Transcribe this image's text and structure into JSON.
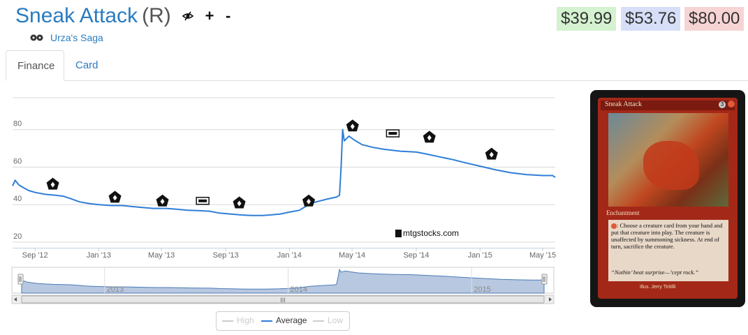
{
  "card": {
    "name": "Sneak Attack",
    "rarity": "(R)",
    "set_name": "Urza's Saga",
    "set_icon": "urzas-saga-set-icon",
    "prices": [
      {
        "label": "$39.99",
        "color": "#d4f2cf"
      },
      {
        "label": "$53.76",
        "color": "#d6dff7"
      },
      {
        "label": "$80.00",
        "color": "#f7d4d4"
      }
    ],
    "plus_label": "+",
    "minus_label": "-"
  },
  "tabs": [
    {
      "label": "Finance",
      "active": true
    },
    {
      "label": "Card",
      "active": false
    }
  ],
  "card_image": {
    "name": "Sneak Attack",
    "mana_cost": "3",
    "type_line": "Enchantment",
    "rules_text": ": Choose a creature card from your hand and put that creature into play. The creature is unaffected by summoning sickness. At end of turn, sacrifice the creature.",
    "flavor_text": "“Nothin’ beat surprise—’cept rock.”",
    "artist": "Illus. Jerry Tiritilli"
  },
  "watermark": "mtgstocks.com",
  "legend": [
    {
      "label": "High",
      "color": "#cccccc"
    },
    {
      "label": "Average",
      "color": "#2f7ed8"
    },
    {
      "label": "Low",
      "color": "#cccccc"
    }
  ],
  "navigator": {
    "year_labels": [
      "2013",
      "2014",
      "2015"
    ],
    "scrollbar_grip": "III"
  },
  "chart_data": {
    "type": "line",
    "title": "",
    "xlabel": "",
    "ylabel": "",
    "ylim": [
      17,
      97
    ],
    "xlim": [
      "2012-07-20",
      "2015-05-25"
    ],
    "y_ticks": [
      20,
      40,
      60,
      80
    ],
    "x_ticks": [
      {
        "label": "Sep '12",
        "date": "2012-09-01"
      },
      {
        "label": "Jan '13",
        "date": "2013-01-01"
      },
      {
        "label": "May '13",
        "date": "2013-05-01"
      },
      {
        "label": "Sep '13",
        "date": "2013-09-01"
      },
      {
        "label": "Jan '14",
        "date": "2014-01-01"
      },
      {
        "label": "May '14",
        "date": "2014-05-01"
      },
      {
        "label": "Sep '14",
        "date": "2014-09-01"
      },
      {
        "label": "Jan '15",
        "date": "2015-01-01"
      },
      {
        "label": "May '15",
        "date": "2015-05-01"
      }
    ],
    "grid": true,
    "legend_position": "bottom",
    "series": [
      {
        "name": "Average",
        "color": "#2f7ed8",
        "points": [
          [
            "2012-07-20",
            50
          ],
          [
            "2012-07-25",
            53
          ],
          [
            "2012-08-01",
            50.5
          ],
          [
            "2012-08-10",
            49
          ],
          [
            "2012-08-20",
            47.5
          ],
          [
            "2012-09-01",
            46.5
          ],
          [
            "2012-09-20",
            45.5
          ],
          [
            "2012-10-10",
            45
          ],
          [
            "2012-10-25",
            44.5
          ],
          [
            "2012-11-10",
            43
          ],
          [
            "2012-11-25",
            41.5
          ],
          [
            "2012-12-15",
            40.5
          ],
          [
            "2013-01-01",
            40
          ],
          [
            "2013-01-25",
            39.5
          ],
          [
            "2013-02-15",
            39.5
          ],
          [
            "2013-03-05",
            39
          ],
          [
            "2013-03-25",
            38.5
          ],
          [
            "2013-04-15",
            38
          ],
          [
            "2013-05-10",
            38
          ],
          [
            "2013-06-01",
            37.5
          ],
          [
            "2013-06-20",
            37
          ],
          [
            "2013-07-10",
            36.8
          ],
          [
            "2013-08-01",
            36.5
          ],
          [
            "2013-08-20",
            35.5
          ],
          [
            "2013-09-10",
            35
          ],
          [
            "2013-10-01",
            34.5
          ],
          [
            "2013-10-20",
            34.2
          ],
          [
            "2013-11-10",
            34.2
          ],
          [
            "2013-11-25",
            34.5
          ],
          [
            "2013-12-15",
            35
          ],
          [
            "2014-01-01",
            36
          ],
          [
            "2014-01-20",
            37
          ],
          [
            "2014-02-01",
            39
          ],
          [
            "2014-02-15",
            41
          ],
          [
            "2014-03-01",
            42
          ],
          [
            "2014-03-15",
            43
          ],
          [
            "2014-04-01",
            44
          ],
          [
            "2014-04-07",
            45
          ],
          [
            "2014-04-10",
            60
          ],
          [
            "2014-04-13",
            80
          ],
          [
            "2014-04-16",
            74
          ],
          [
            "2014-04-25",
            76.5
          ],
          [
            "2014-05-05",
            74.5
          ],
          [
            "2014-05-20",
            72
          ],
          [
            "2014-06-10",
            70.5
          ],
          [
            "2014-07-01",
            69.5
          ],
          [
            "2014-08-01",
            68.5
          ],
          [
            "2014-09-01",
            68
          ],
          [
            "2014-09-20",
            67
          ],
          [
            "2014-10-15",
            65.5
          ],
          [
            "2014-11-10",
            64
          ],
          [
            "2014-12-01",
            62.5
          ],
          [
            "2015-01-01",
            60.5
          ],
          [
            "2015-02-01",
            58.5
          ],
          [
            "2015-03-01",
            57
          ],
          [
            "2015-04-01",
            56
          ],
          [
            "2015-05-01",
            55.5
          ],
          [
            "2015-05-20",
            55.5
          ],
          [
            "2015-05-25",
            54.5
          ]
        ]
      }
    ],
    "set_release_markers": [
      {
        "date": "2012-10-05",
        "value": 51,
        "icon": "return-to-ravnica-icon"
      },
      {
        "date": "2013-02-01",
        "value": 44,
        "icon": "gatecrash-icon"
      },
      {
        "date": "2013-05-03",
        "value": 42,
        "icon": "dragons-maze-icon"
      },
      {
        "date": "2013-07-19",
        "value": 42,
        "icon": "m14-icon"
      },
      {
        "date": "2013-09-27",
        "value": 41,
        "icon": "theros-icon"
      },
      {
        "date": "2014-02-07",
        "value": 42,
        "icon": "born-of-the-gods-icon"
      },
      {
        "date": "2014-05-02",
        "value": 82,
        "icon": "journey-into-nyx-icon"
      },
      {
        "date": "2014-07-18",
        "value": 78,
        "icon": "m15-icon"
      },
      {
        "date": "2014-09-26",
        "value": 76,
        "icon": "khans-of-tarkir-icon"
      },
      {
        "date": "2015-01-23",
        "value": 67,
        "icon": "fate-reforged-icon"
      }
    ]
  }
}
